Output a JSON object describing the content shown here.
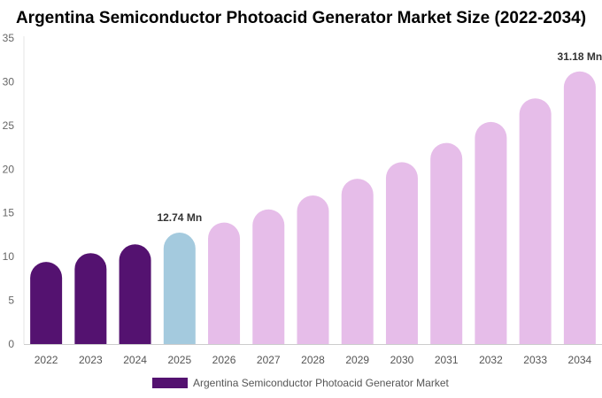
{
  "chart_data": {
    "type": "bar",
    "title": "Argentina Semiconductor Photoacid Generator Market Size (2022-2034)",
    "categories": [
      "2022",
      "2023",
      "2024",
      "2025",
      "2026",
      "2027",
      "2028",
      "2029",
      "2030",
      "2031",
      "2032",
      "2033",
      "2034"
    ],
    "series": [
      {
        "name": "Argentina Semiconductor Photoacid Generator Market",
        "values": [
          9.4,
          10.4,
          11.4,
          12.74,
          13.9,
          15.4,
          17.0,
          18.9,
          20.8,
          23.0,
          25.4,
          28.1,
          31.18
        ]
      }
    ],
    "bar_colors": [
      "#541270",
      "#541270",
      "#541270",
      "#a4cade",
      "#e6bde9",
      "#e6bde9",
      "#e6bde9",
      "#e6bde9",
      "#e6bde9",
      "#e6bde9",
      "#e6bde9",
      "#e6bde9",
      "#e6bde9"
    ],
    "data_labels": [
      {
        "category": "2025",
        "text": "12.74 Mn"
      },
      {
        "category": "2034",
        "text": "31.18 Mn"
      }
    ],
    "ylim": [
      0,
      35
    ],
    "yticks": [
      0,
      5,
      10,
      15,
      20,
      25,
      30,
      35
    ],
    "xlabel": "",
    "ylabel": "",
    "grid": false,
    "legend_position": "bottom"
  },
  "legend": {
    "label": "Argentina Semiconductor Photoacid Generator Market",
    "color": "#541270"
  }
}
